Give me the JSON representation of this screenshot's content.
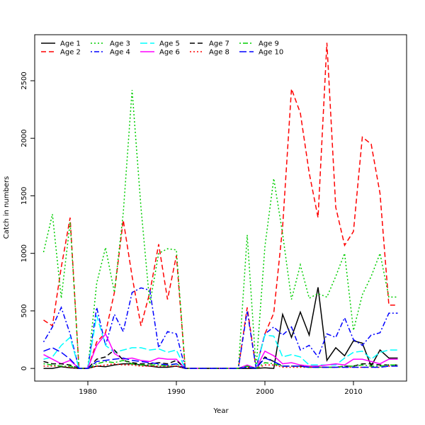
{
  "chart_data": {
    "type": "line",
    "title": "",
    "xlabel": "Year",
    "ylabel": "Catch in numbers",
    "xlim": [
      1974,
      2016
    ],
    "ylim": [
      -110,
      2900
    ],
    "xticks": [
      1980,
      1990,
      2000,
      2010
    ],
    "yticks": [
      0,
      500,
      1000,
      1500,
      2000,
      2500
    ],
    "grid": false,
    "legend": "top-left",
    "x": [
      1975,
      1976,
      1977,
      1978,
      1979,
      1980,
      1981,
      1982,
      1983,
      1984,
      1985,
      1986,
      1987,
      1988,
      1989,
      1990,
      1991,
      1992,
      1993,
      1994,
      1995,
      1996,
      1997,
      1998,
      1999,
      2000,
      2001,
      2002,
      2003,
      2004,
      2005,
      2006,
      2007,
      2008,
      2009,
      2010,
      2011,
      2012,
      2013,
      2014,
      2015
    ],
    "series": [
      {
        "name": "Age 1",
        "color": "#000000",
        "dash": "solid",
        "values": [
          0,
          0,
          15,
          5,
          0,
          0,
          20,
          15,
          30,
          40,
          40,
          30,
          20,
          10,
          10,
          20,
          0,
          0,
          0,
          0,
          0,
          0,
          0,
          0,
          0,
          5,
          0,
          470,
          270,
          490,
          290,
          705,
          70,
          180,
          110,
          240,
          220,
          20,
          160,
          90,
          90
        ]
      },
      {
        "name": "Age 2",
        "color": "#ff0000",
        "dash": "dashed",
        "values": [
          420,
          370,
          880,
          1310,
          0,
          0,
          230,
          310,
          660,
          1290,
          800,
          370,
          660,
          1080,
          600,
          980,
          0,
          0,
          0,
          0,
          0,
          0,
          0,
          530,
          0,
          300,
          480,
          1230,
          2430,
          2220,
          1700,
          1310,
          2830,
          1400,
          1070,
          1190,
          2010,
          1950,
          1520,
          550,
          550
        ]
      },
      {
        "name": "Age 3",
        "color": "#00cd00",
        "dash": "dotted",
        "values": [
          1010,
          1340,
          610,
          1270,
          0,
          0,
          740,
          1050,
          660,
          1350,
          2420,
          1400,
          560,
          1000,
          1040,
          1030,
          0,
          0,
          0,
          0,
          0,
          0,
          0,
          1160,
          0,
          1060,
          1650,
          1170,
          600,
          900,
          610,
          650,
          620,
          800,
          1000,
          330,
          640,
          800,
          1000,
          620,
          620
        ]
      },
      {
        "name": "Age 4",
        "color": "#0000ff",
        "dash": "dotdash",
        "values": [
          230,
          360,
          530,
          300,
          0,
          0,
          530,
          200,
          470,
          320,
          660,
          700,
          680,
          180,
          320,
          300,
          0,
          0,
          0,
          0,
          0,
          0,
          0,
          500,
          0,
          300,
          360,
          290,
          360,
          160,
          200,
          100,
          300,
          270,
          440,
          250,
          200,
          290,
          310,
          480,
          480
        ]
      },
      {
        "name": "Age 5",
        "color": "#00ffff",
        "dash": "longdash",
        "values": [
          80,
          100,
          200,
          270,
          0,
          0,
          460,
          200,
          140,
          160,
          180,
          180,
          160,
          170,
          140,
          160,
          0,
          0,
          0,
          0,
          0,
          0,
          0,
          20,
          0,
          290,
          280,
          100,
          120,
          100,
          30,
          30,
          30,
          30,
          90,
          140,
          150,
          80,
          140,
          160,
          160
        ]
      },
      {
        "name": "Age 6",
        "color": "#ff00ff",
        "dash": "solid",
        "values": [
          120,
          80,
          40,
          70,
          0,
          0,
          200,
          300,
          130,
          80,
          90,
          70,
          60,
          90,
          80,
          80,
          0,
          0,
          0,
          0,
          0,
          0,
          0,
          30,
          0,
          150,
          110,
          40,
          50,
          30,
          20,
          20,
          30,
          40,
          30,
          80,
          80,
          60,
          40,
          80,
          80
        ]
      },
      {
        "name": "Age 7",
        "color": "#000000",
        "dash": "dashed",
        "values": [
          60,
          40,
          40,
          30,
          0,
          0,
          80,
          100,
          160,
          70,
          50,
          40,
          40,
          50,
          40,
          70,
          0,
          0,
          0,
          0,
          0,
          0,
          0,
          20,
          0,
          100,
          60,
          20,
          20,
          20,
          10,
          10,
          10,
          10,
          20,
          20,
          40,
          40,
          30,
          30,
          30
        ]
      },
      {
        "name": "Age 8",
        "color": "#ff0000",
        "dash": "dotted",
        "values": [
          20,
          20,
          20,
          10,
          0,
          0,
          20,
          30,
          40,
          30,
          30,
          20,
          20,
          20,
          20,
          20,
          0,
          0,
          0,
          0,
          0,
          0,
          0,
          10,
          0,
          30,
          30,
          10,
          10,
          10,
          10,
          10,
          10,
          10,
          10,
          10,
          10,
          10,
          10,
          20,
          20
        ]
      },
      {
        "name": "Age 9",
        "color": "#00cd00",
        "dash": "dotdash",
        "values": [
          40,
          30,
          20,
          20,
          0,
          0,
          40,
          60,
          50,
          70,
          40,
          30,
          30,
          30,
          20,
          40,
          0,
          0,
          0,
          0,
          0,
          0,
          0,
          20,
          0,
          50,
          40,
          20,
          20,
          20,
          10,
          10,
          10,
          10,
          20,
          20,
          30,
          20,
          20,
          30,
          30
        ]
      },
      {
        "name": "Age 10",
        "color": "#0000ff",
        "dash": "longdash",
        "values": [
          150,
          180,
          140,
          80,
          0,
          0,
          60,
          70,
          80,
          90,
          70,
          60,
          50,
          40,
          30,
          40,
          0,
          0,
          0,
          0,
          0,
          0,
          0,
          10,
          0,
          90,
          60,
          20,
          20,
          20,
          10,
          10,
          10,
          10,
          10,
          10,
          10,
          10,
          10,
          20,
          20
        ]
      }
    ]
  }
}
